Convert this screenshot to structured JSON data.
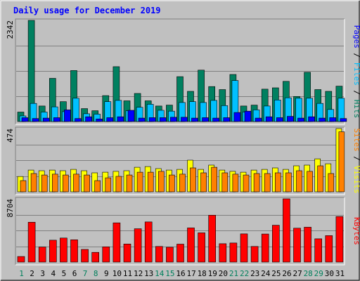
{
  "chart_data": {
    "type": "bar",
    "title": "Daily usage for December 2019",
    "days": [
      "1",
      "2",
      "3",
      "4",
      "5",
      "6",
      "7",
      "8",
      "9",
      "10",
      "11",
      "12",
      "13",
      "14",
      "15",
      "16",
      "17",
      "18",
      "19",
      "20",
      "21",
      "22",
      "23",
      "24",
      "25",
      "26",
      "27",
      "28",
      "29",
      "30",
      "31"
    ],
    "weekend_days": [
      1,
      7,
      8,
      14,
      15,
      21,
      22,
      28,
      29
    ],
    "panels": [
      {
        "id": "hits",
        "max_label": "2342",
        "max": 2342,
        "labels": {
          "pages": "Pages",
          "files": "Files",
          "hits": "Hits"
        },
        "series": [
          {
            "key": "hits",
            "color": "#008060",
            "values": [
              220,
              2342,
              360,
              1000,
              460,
              1180,
              300,
              250,
              600,
              1270,
              480,
              650,
              480,
              360,
              380,
              1040,
              700,
              1190,
              810,
              740,
              1090,
              360,
              380,
              750,
              780,
              930,
              580,
              1140,
              740,
              700,
              820
            ]
          },
          {
            "key": "files",
            "color": "#00C0FF",
            "values": [
              130,
              420,
              220,
              340,
              230,
              540,
              180,
              170,
              460,
              490,
              250,
              330,
              400,
              260,
              240,
              440,
              460,
              440,
              490,
              370,
              950,
              220,
              270,
              360,
              500,
              550,
              540,
              540,
              420,
              280,
              540
            ]
          },
          {
            "key": "pages",
            "color": "#0000FF",
            "values": [
              90,
              70,
              80,
              90,
              270,
              70,
              110,
              60,
              90,
              110,
              260,
              80,
              90,
              90,
              100,
              100,
              80,
              90,
              80,
              90,
              210,
              240,
              80,
              110,
              90,
              120,
              80,
              110,
              80,
              90,
              70
            ]
          }
        ]
      },
      {
        "id": "visits",
        "max_label": "474",
        "max": 474,
        "labels": {
          "sites": "Sites",
          "visits": "Visits"
        },
        "series": [
          {
            "key": "visits",
            "color": "#FFFF00",
            "values": [
              115,
              163,
              158,
              163,
              158,
              168,
              158,
              142,
              147,
              153,
              158,
              184,
              189,
              174,
              163,
              168,
              237,
              168,
              200,
              163,
              153,
              147,
              163,
              168,
              179,
              168,
              195,
              200,
              247,
              210,
              474
            ]
          },
          {
            "key": "sites",
            "color": "#FF8000",
            "values": [
              84,
              137,
              126,
              132,
              126,
              132,
              126,
              84,
              105,
              116,
              126,
              147,
              147,
              153,
              126,
              132,
              179,
              142,
              184,
              142,
              132,
              126,
              137,
              137,
              142,
              142,
              158,
              153,
              195,
              137,
              450
            ]
          }
        ]
      },
      {
        "id": "kbytes",
        "max_label": "8704",
        "max": 8704,
        "labels": {
          "kbytes": "KBytes"
        },
        "series": [
          {
            "key": "kbytes",
            "color": "#FF0000",
            "values": [
              760,
              5480,
              2070,
              3010,
              3310,
              3070,
              1740,
              1330,
              2100,
              5400,
              2490,
              4580,
              5520,
              2150,
              2040,
              2470,
              4700,
              4020,
              6450,
              2520,
              2620,
              3880,
              2150,
              3860,
              5070,
              8704,
              4660,
              4800,
              3200,
              3640,
              6270
            ]
          }
        ]
      }
    ]
  }
}
